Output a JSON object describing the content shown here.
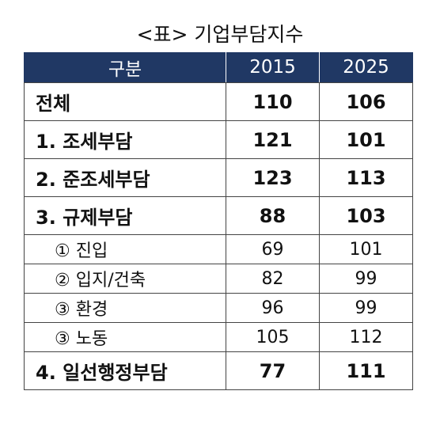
{
  "caption": "<표> 기업부담지수",
  "table": {
    "headers": [
      "구분",
      "2015",
      "2025"
    ],
    "rows": [
      {
        "label": "전체",
        "v2015": "110",
        "v2025": "106",
        "level": "main"
      },
      {
        "label": "1. 조세부담",
        "v2015": "121",
        "v2025": "101",
        "level": "main"
      },
      {
        "label": "2. 준조세부담",
        "v2015": "123",
        "v2025": "113",
        "level": "main"
      },
      {
        "label": "3. 규제부담",
        "v2015": "88",
        "v2025": "103",
        "level": "main"
      },
      {
        "label": "① 진입",
        "v2015": "69",
        "v2025": "101",
        "level": "sub"
      },
      {
        "label": "② 입지/건축",
        "v2015": "82",
        "v2025": "99",
        "level": "sub"
      },
      {
        "label": "③ 환경",
        "v2015": "96",
        "v2025": "99",
        "level": "sub"
      },
      {
        "label": "③ 노동",
        "v2015": "105",
        "v2025": "112",
        "level": "sub"
      },
      {
        "label": "4. 일선행정부담",
        "v2015": "77",
        "v2025": "111",
        "level": "main"
      }
    ]
  },
  "colors": {
    "header_bg": "#203864",
    "header_text": "#ffffff"
  }
}
